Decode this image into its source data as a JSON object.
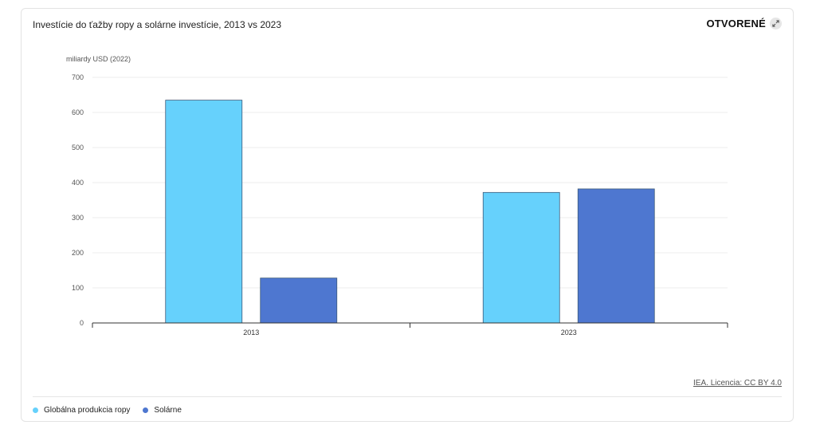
{
  "card": {
    "title": "Investície do ťažby ropy a solárne investície, 2013 vs 2023",
    "open_label": "OTVORENÉ",
    "open_icon": "expand-icon",
    "source_label": "IEA. Licencia: CC BY 4.0"
  },
  "chart_data": {
    "type": "bar",
    "title": "Investície do ťažby ropy a solárne investície, 2013 vs 2023",
    "ylabel": "miliardy USD (2022)",
    "xlabel": "",
    "categories": [
      "2013",
      "2023"
    ],
    "ylim": [
      0,
      700
    ],
    "yticks": [
      0,
      100,
      200,
      300,
      400,
      500,
      600,
      700
    ],
    "grid": true,
    "legend_position": "bottom-left",
    "series": [
      {
        "name": "Globálna produkcia ropy",
        "color": "#66d1fc",
        "values": [
          635,
          372
        ]
      },
      {
        "name": "Solárne",
        "color": "#4e77d0",
        "values": [
          128,
          382
        ]
      }
    ]
  }
}
